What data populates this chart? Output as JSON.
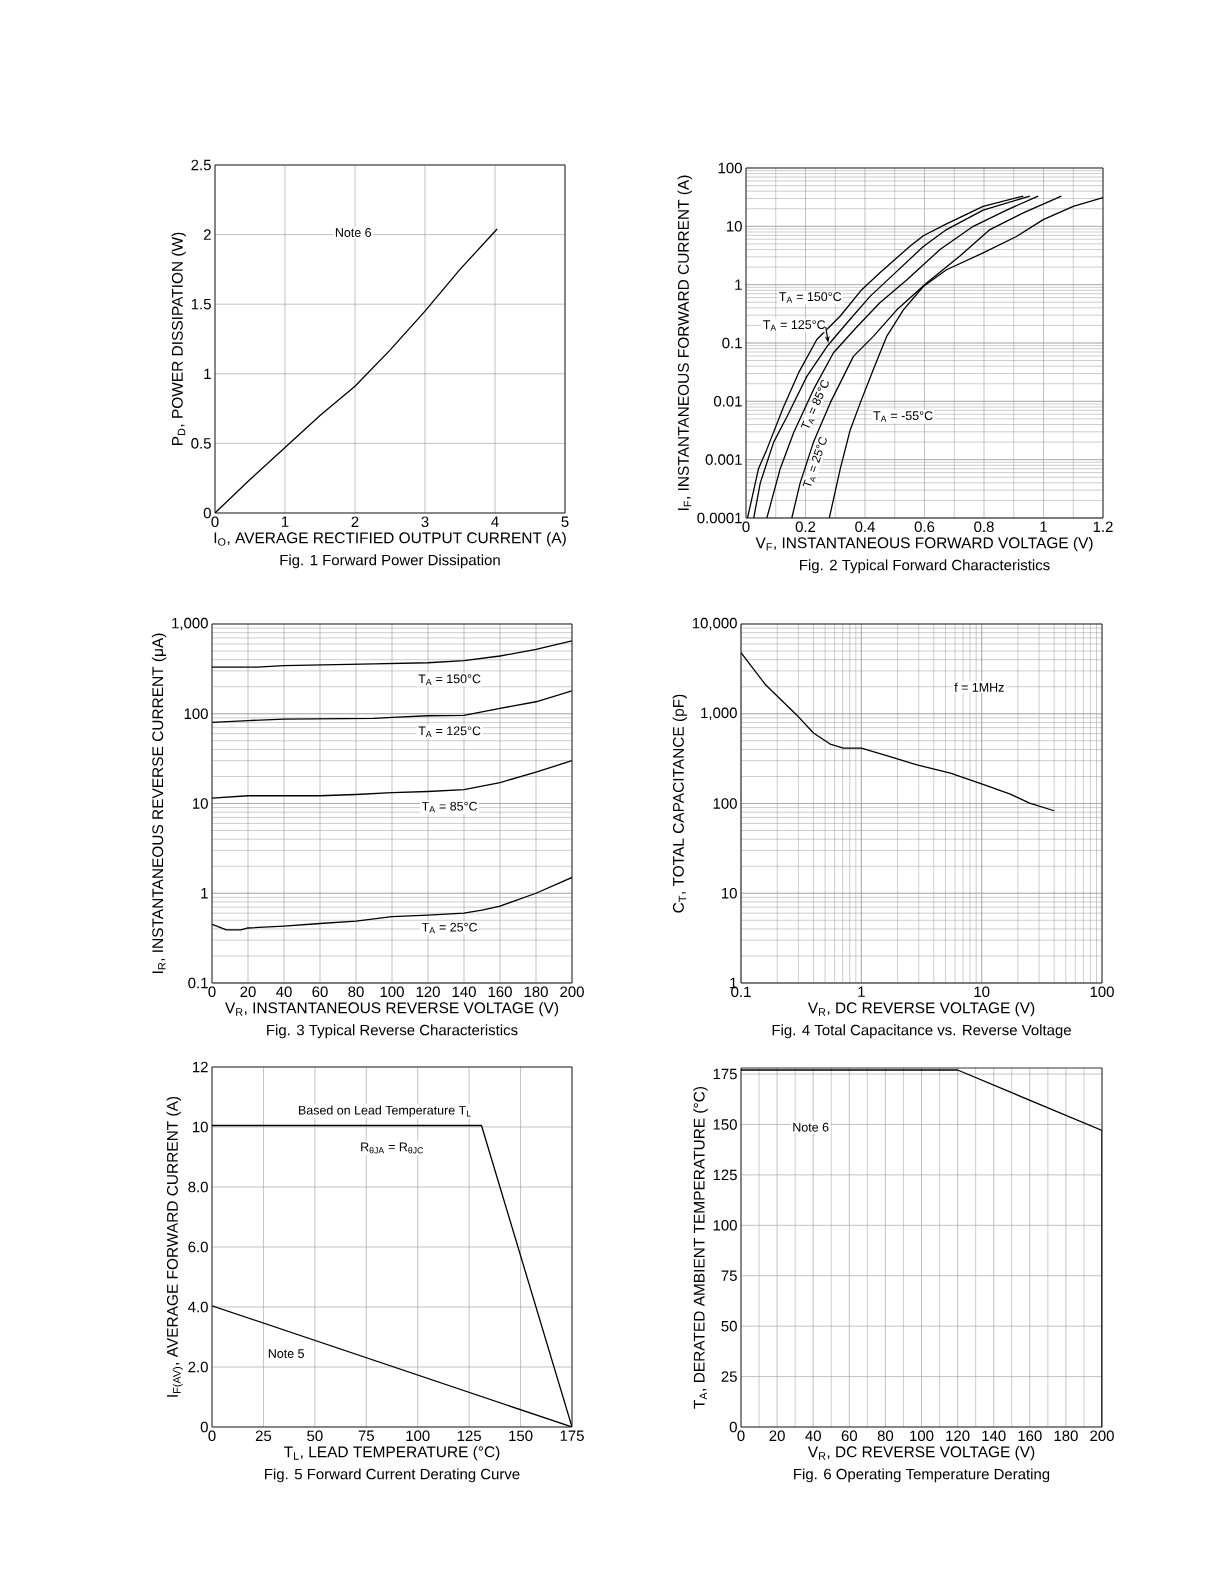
{
  "chart_data": [
    {
      "type": "line",
      "title": "Fig. 1 Forward Power Dissipation",
      "xlabel": "I$_{O}$, AVERAGE RECTIFIED OUTPUT CURRENT (A)",
      "ylabel": "P$_{D}$, POWER DISSIPATION (W)",
      "xlim": [
        0,
        5
      ],
      "xticks": [
        0,
        1,
        2,
        3,
        4,
        5
      ],
      "ylim": [
        0,
        2.5
      ],
      "yticks": [
        0,
        0.5,
        1,
        1.5,
        2,
        2.5
      ],
      "grid": true,
      "annotations": [
        "Note 6"
      ],
      "series": [
        {
          "color": "#000000",
          "x": [
            0,
            0.5,
            1,
            1.5,
            2,
            2.5,
            3,
            3.5,
            4.03
          ],
          "values": [
            0,
            0.24,
            0.47,
            0.7,
            0.91,
            1.17,
            1.45,
            1.75,
            2.04
          ]
        }
      ]
    },
    {
      "type": "line",
      "title": "Fig. 2 Typical Forward Characteristics",
      "xlabel": "V$_{F}$, INSTANTANEOUS FORWARD VOLTAGE (V)",
      "ylabel": "I$_{F}$, INSTANTANEOUS FORWARD CURRENT (A)",
      "log": "y",
      "xlim": [
        0,
        1.2
      ],
      "xticks": [
        0,
        0.2,
        0.4,
        0.6,
        0.8,
        1,
        1.2
      ],
      "ylim": [
        0.0001,
        100
      ],
      "yticks": [
        0.0001,
        0.001,
        0.01,
        0.1,
        1,
        10,
        100
      ],
      "grid": true,
      "series": [
        {
          "name": "T$_{A}$ = 150°C",
          "color": "#000000",
          "x": [
            0.005,
            0.026,
            0.042,
            0.07,
            0.126,
            0.177,
            0.238,
            0.317,
            0.389,
            0.45,
            0.55,
            0.596,
            0.674,
            0.797,
            0.932
          ],
          "values": [
            0.0001,
            0.0003,
            0.0007,
            0.0015,
            0.008,
            0.031,
            0.115,
            0.29,
            0.82,
            1.6,
            4.5,
            6.9,
            11,
            22,
            33
          ]
        },
        {
          "name": "T$_{A}$ = 125°C",
          "color": "#000000",
          "x": [
            0.026,
            0.048,
            0.093,
            0.138,
            0.205,
            0.272,
            0.339,
            0.417,
            0.496,
            0.596,
            0.674,
            0.797,
            0.954
          ],
          "values": [
            0.0001,
            0.0004,
            0.002,
            0.0055,
            0.027,
            0.087,
            0.22,
            0.63,
            1.5,
            4.5,
            8.8,
            19,
            33
          ]
        },
        {
          "name": "T$_{A}$ = 85°C",
          "color": "#000000",
          "x": [
            0.07,
            0.115,
            0.16,
            0.227,
            0.294,
            0.373,
            0.45,
            0.54,
            0.652,
            0.764,
            0.876,
            0.982
          ],
          "values": [
            0.0001,
            0.0007,
            0.0029,
            0.016,
            0.068,
            0.19,
            0.49,
            1.2,
            4,
            10,
            19,
            33
          ]
        },
        {
          "name": "T$_{A}$ = 25°C",
          "color": "#000000",
          "x": [
            0.154,
            0.182,
            0.227,
            0.283,
            0.361,
            0.428,
            0.507,
            0.607,
            0.719,
            0.82,
            0.932,
            1.06
          ],
          "values": [
            0.0001,
            0.0004,
            0.002,
            0.0094,
            0.059,
            0.13,
            0.37,
            1.07,
            3.1,
            8.8,
            17,
            33
          ]
        },
        {
          "name": "T$_{A}$ = -55°C",
          "color": "#000000",
          "x": [
            0.28,
            0.317,
            0.35,
            0.384,
            0.428,
            0.473,
            0.529,
            0.596,
            0.674,
            0.797,
            0.909,
            0.999,
            1.1,
            1.2
          ],
          "values": [
            0.0001,
            0.0007,
            0.0032,
            0.0094,
            0.035,
            0.13,
            0.37,
            0.93,
            1.8,
            3.5,
            6.7,
            13,
            22,
            31
          ]
        }
      ]
    },
    {
      "type": "line",
      "title": "Fig. 3 Typical Reverse Characteristics",
      "xlabel": "V$_{R}$, INSTANTANEOUS REVERSE VOLTAGE (V)",
      "ylabel": "I$_{R}$, INSTANTANEOUS REVERSE CURRENT (μA)",
      "log": "y",
      "xlim": [
        0,
        200
      ],
      "xticks": [
        0,
        20,
        40,
        60,
        80,
        100,
        120,
        140,
        160,
        180,
        200
      ],
      "ylim": [
        0.1,
        1000
      ],
      "yticks": [
        0.1,
        1,
        10,
        100,
        {
          "value": 1000,
          "label": "1,000"
        }
      ],
      "grid": true,
      "series": [
        {
          "name": "T$_{A}$ = 150°C",
          "color": "#000000",
          "x": [
            0,
            25,
            40,
            90,
            120,
            140,
            160,
            180,
            200
          ],
          "values": [
            330,
            330,
            344,
            360,
            370,
            390,
            440,
            520,
            650
          ]
        },
        {
          "name": "T$_{A}$ = 125°C",
          "color": "#000000",
          "x": [
            0,
            20,
            40,
            90,
            100,
            120,
            140,
            160,
            180,
            200
          ],
          "values": [
            80,
            84,
            87,
            89,
            91,
            95,
            96,
            115,
            136,
            180
          ]
        },
        {
          "name": "T$_{A}$ = 85°C",
          "color": "#000000",
          "x": [
            0,
            20,
            60,
            80,
            100,
            120,
            140,
            160,
            180,
            200
          ],
          "values": [
            11.5,
            12.2,
            12.2,
            12.6,
            13.2,
            13.6,
            14.3,
            17.1,
            22.4,
            30
          ]
        },
        {
          "name": "T$_{A}$ = 25°C",
          "color": "#000000",
          "x": [
            0,
            8,
            16,
            20,
            40,
            60,
            80,
            100,
            120,
            140,
            150,
            160,
            180,
            200
          ],
          "values": [
            0.45,
            0.39,
            0.39,
            0.41,
            0.43,
            0.46,
            0.49,
            0.55,
            0.57,
            0.6,
            0.65,
            0.72,
            1.0,
            1.5
          ]
        }
      ]
    },
    {
      "type": "line",
      "title": "Fig. 4 Total Capacitance vs. Reverse Voltage",
      "xlabel": "V$_{R}$, DC REVERSE VOLTAGE (V)",
      "ylabel": "C$_{T}$, TOTAL CAPACITANCE (pF)",
      "log": "xy",
      "xlim": [
        0.1,
        100
      ],
      "xticks": [
        0.1,
        1,
        10,
        100
      ],
      "ylim": [
        1,
        10000
      ],
      "yticks": [
        1,
        10,
        100,
        {
          "value": 1000,
          "label": "1,000"
        },
        {
          "value": 10000,
          "label": "10,000"
        }
      ],
      "grid": true,
      "annotations": [
        "f = 1MHz"
      ],
      "series": [
        {
          "color": "#000000",
          "x": [
            0.1,
            0.16,
            0.29,
            0.4,
            0.55,
            0.71,
            1.0,
            1.73,
            2.9,
            5.5,
            10.4,
            17.3,
            25,
            40
          ],
          "values": [
            4800,
            2100,
            970,
            610,
            460,
            413,
            413,
            333,
            269,
            218,
            162,
            127,
            101,
            83
          ]
        }
      ]
    },
    {
      "type": "line",
      "title": "Fig. 5 Forward Current Derating Curve",
      "xlabel": "T$_{L}$, LEAD TEMPERATURE (°C)",
      "ylabel": "I$_{F(AV)}$, AVERAGE FORWARD CURRENT (A)",
      "xlim": [
        0,
        175
      ],
      "xticks": [
        0,
        25,
        50,
        75,
        100,
        125,
        150,
        175
      ],
      "ylim": [
        0,
        12
      ],
      "yticks": [
        0,
        {
          "value": 2,
          "label": "2.0"
        },
        {
          "value": 4,
          "label": "4.0"
        },
        {
          "value": 6,
          "label": "6.0"
        },
        {
          "value": 8,
          "label": "8.0"
        },
        10,
        12
      ],
      "grid": true,
      "annotations": [
        "Based on Lead Temperature T$_{L}$",
        "R$_{θJA}$ = R$_{θJC}$",
        "Note 5"
      ],
      "series": [
        {
          "color": "#000000",
          "x": [
            0,
            131,
            175
          ],
          "values": [
            10.05,
            10.05,
            0
          ]
        },
        {
          "color": "#000000",
          "x": [
            0,
            175
          ],
          "values": [
            4.04,
            0
          ]
        }
      ]
    },
    {
      "type": "line",
      "title": "Fig. 6 Operating Temperature Derating",
      "xlabel": "V$_{R}$, DC REVERSE VOLTAGE (V)",
      "ylabel": "T$_{A}$, DERATED AMBIENT TEMPERATURE (°C)",
      "xlim": [
        0,
        200
      ],
      "xticks": [
        0,
        20,
        40,
        60,
        80,
        100,
        120,
        140,
        160,
        180,
        200
      ],
      "ylim": [
        0,
        178
      ],
      "yticks": [
        0,
        25,
        50,
        75,
        100,
        125,
        150,
        175
      ],
      "grid": true,
      "annotations": [
        "Note 6"
      ],
      "series": [
        {
          "color": "#000000",
          "x": [
            0,
            120,
            200,
            200
          ],
          "values": [
            177,
            177,
            147,
            0
          ]
        }
      ]
    }
  ]
}
